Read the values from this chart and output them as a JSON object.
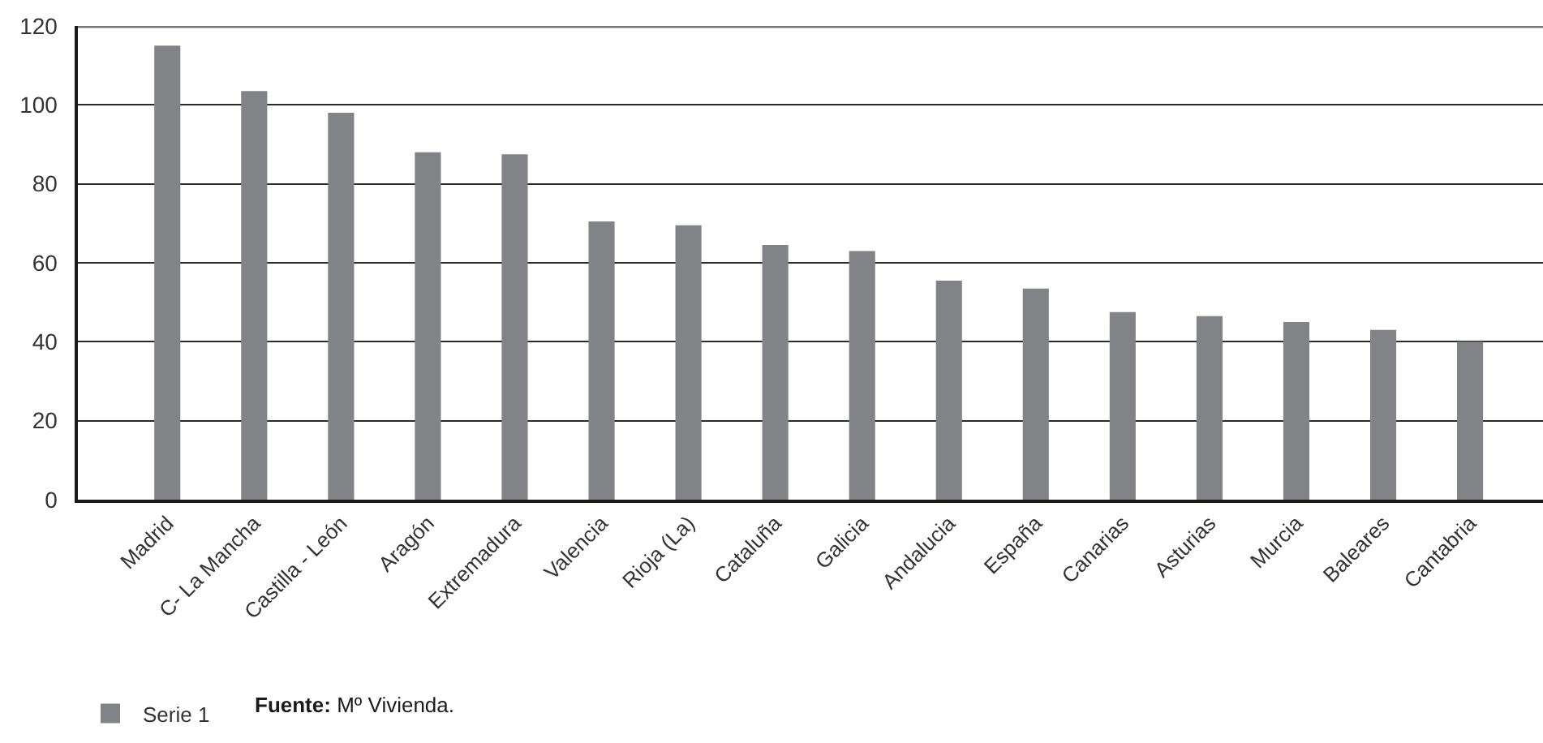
{
  "chart_data": {
    "type": "bar",
    "categories": [
      "Madrid",
      "C- La Mancha",
      "Castilla - León",
      "Aragón",
      "Extremadura",
      "Valencia",
      "Rioja (La)",
      "Cataluña",
      "Galicia",
      "Andalucia",
      "España",
      "Canarias",
      "Asturias",
      "Murcia",
      "Baleares",
      "Cantabria"
    ],
    "series": [
      {
        "name": "Serie 1",
        "color": "#828387",
        "values": [
          115,
          103.5,
          98,
          88,
          87.5,
          70.5,
          69.5,
          64.5,
          63,
          55.5,
          53.5,
          47.5,
          46.5,
          45,
          43,
          40
        ]
      }
    ],
    "ylim": [
      0,
      120
    ],
    "yticks": [
      0,
      20,
      40,
      60,
      80,
      100,
      120
    ],
    "grid": "y",
    "legend": "bottom left",
    "annotations": [
      "Fuente: Mº Vivienda."
    ]
  }
}
